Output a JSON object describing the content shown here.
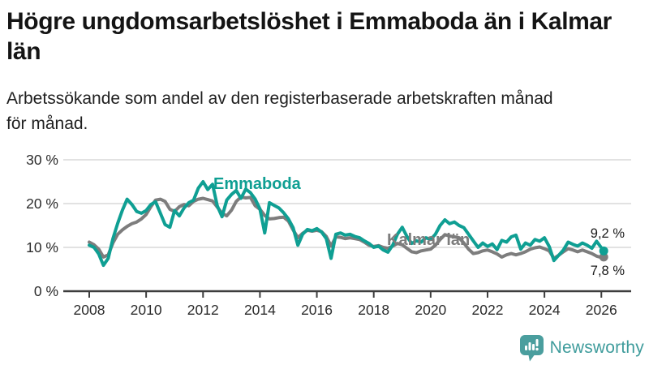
{
  "header": {
    "title": "Högre ungdomsarbetslöshet i Emmaboda än i Kalmar län",
    "title_lines": [
      "Högre ungdomsarbetslöshet i Emmaboda än i Kalmar",
      "län"
    ],
    "subtitle": "Arbetssökande som andel av den registerbaserade arbetskraften månad för månad.",
    "subtitle_lines": [
      "Arbetssökande som andel av den registerbaserade arbetskraften månad",
      "för månad."
    ]
  },
  "branding": {
    "name": "Newsworthy",
    "logo_icon": "newsworthy-speech-bubble-bar-chart-icon",
    "color": "#3f9c9c"
  },
  "chart_data": {
    "type": "line",
    "title": "Högre ungdomsarbetslöshet i Emmaboda än i Kalmar län",
    "xlabel": "",
    "ylabel": "",
    "grid": "horizontal",
    "legend": "inline-labels",
    "xlim": [
      2007.1,
      2027.1
    ],
    "ylim": [
      0,
      32
    ],
    "x_ticks": [
      2008,
      2010,
      2012,
      2014,
      2016,
      2018,
      2020,
      2022,
      2024,
      2026
    ],
    "y_ticks": [
      {
        "value": 0,
        "label": "0 %"
      },
      {
        "value": 10,
        "label": "10 %"
      },
      {
        "value": 20,
        "label": "20 %"
      },
      {
        "value": 30,
        "label": "30 %"
      }
    ],
    "style": {
      "grid_color": "#d9d9d9",
      "axis_color": "#3d3d3d",
      "axis_text_color": "#2b2b2b",
      "end_label_color": "#1a1a1a"
    },
    "x": [
      2008,
      2008.167,
      2008.333,
      2008.5,
      2008.667,
      2008.833,
      2009,
      2009.167,
      2009.333,
      2009.5,
      2009.667,
      2009.833,
      2010,
      2010.167,
      2010.333,
      2010.5,
      2010.667,
      2010.833,
      2011,
      2011.167,
      2011.333,
      2011.5,
      2011.667,
      2011.833,
      2012,
      2012.167,
      2012.333,
      2012.5,
      2012.667,
      2012.833,
      2013,
      2013.167,
      2013.333,
      2013.5,
      2013.667,
      2013.833,
      2014,
      2014.167,
      2014.333,
      2014.5,
      2014.667,
      2014.833,
      2015,
      2015.167,
      2015.333,
      2015.5,
      2015.667,
      2015.833,
      2016,
      2016.167,
      2016.333,
      2016.5,
      2016.667,
      2016.833,
      2017,
      2017.167,
      2017.333,
      2017.5,
      2017.667,
      2017.833,
      2018,
      2018.167,
      2018.333,
      2018.5,
      2018.667,
      2018.833,
      2019,
      2019.167,
      2019.333,
      2019.5,
      2019.667,
      2019.833,
      2020,
      2020.167,
      2020.333,
      2020.5,
      2020.667,
      2020.833,
      2021,
      2021.167,
      2021.333,
      2021.5,
      2021.667,
      2021.833,
      2022,
      2022.167,
      2022.333,
      2022.5,
      2022.667,
      2022.833,
      2023,
      2023.167,
      2023.333,
      2023.5,
      2023.667,
      2023.833,
      2024,
      2024.167,
      2024.333,
      2024.5,
      2024.667,
      2024.833,
      2025,
      2025.167,
      2025.333,
      2025.5,
      2025.667,
      2025.833,
      2026,
      2026.083
    ],
    "series": [
      {
        "id": "emmaboda",
        "name": "Emmaboda",
        "color": "#0f9f93",
        "end_value": 9.2,
        "end_label": "9,2 %",
        "values": [
          10.5,
          10.0,
          8.5,
          5.9,
          7.5,
          12.0,
          15.5,
          18.5,
          21.0,
          19.8,
          18.2,
          17.8,
          18.4,
          19.8,
          20.4,
          17.8,
          15.2,
          14.6,
          18.4,
          17.2,
          19.0,
          20.2,
          20.8,
          23.5,
          25.0,
          23.2,
          24.4,
          19.5,
          17.0,
          20.8,
          22.1,
          23.0,
          21.2,
          23.3,
          22.5,
          21.0,
          18.8,
          13.3,
          20.2,
          19.6,
          19.0,
          17.9,
          16.5,
          14.5,
          10.5,
          13.0,
          14.1,
          13.8,
          14.3,
          13.5,
          12.0,
          7.5,
          13.0,
          13.3,
          12.8,
          13.0,
          12.5,
          12.2,
          11.5,
          10.9,
          10.0,
          10.3,
          9.4,
          8.9,
          10.5,
          13.0,
          14.6,
          12.5,
          10.9,
          11.5,
          11.2,
          12.2,
          11.8,
          13.0,
          15.0,
          16.3,
          15.4,
          15.8,
          15.0,
          14.5,
          13.0,
          11.5,
          10.0,
          11.0,
          10.2,
          10.8,
          9.5,
          11.6,
          11.2,
          12.4,
          12.8,
          9.6,
          11.0,
          10.5,
          11.8,
          11.4,
          12.2,
          10.2,
          7.0,
          8.2,
          9.4,
          11.2,
          10.7,
          10.3,
          11.0,
          10.5,
          9.8,
          11.4,
          9.9,
          9.2
        ]
      },
      {
        "id": "kalmar-lan",
        "name": "Kalmar län",
        "color": "#7d7d7d",
        "end_value": 7.8,
        "end_label": "7,8 %",
        "values": [
          11.2,
          10.6,
          9.6,
          7.8,
          8.3,
          11.0,
          13.0,
          14.0,
          14.8,
          15.4,
          15.8,
          16.5,
          17.5,
          19.3,
          20.8,
          21.0,
          20.5,
          18.7,
          18.2,
          19.3,
          19.8,
          19.5,
          20.5,
          21.0,
          21.2,
          20.9,
          20.6,
          19.2,
          17.8,
          17.2,
          18.5,
          20.5,
          21.5,
          21.3,
          21.4,
          19.5,
          18.7,
          17.3,
          16.5,
          16.6,
          16.8,
          16.9,
          16.0,
          14.0,
          12.2,
          13.2,
          13.9,
          13.7,
          13.9,
          13.6,
          12.5,
          10.3,
          12.4,
          12.3,
          12.0,
          12.2,
          12.0,
          11.8,
          11.2,
          10.5,
          10.2,
          10.4,
          10.0,
          9.8,
          10.3,
          10.9,
          10.6,
          9.8,
          9.0,
          8.8,
          9.2,
          9.4,
          9.6,
          10.5,
          11.8,
          12.9,
          12.6,
          12.4,
          12.2,
          11.0,
          9.6,
          8.6,
          8.8,
          9.2,
          9.4,
          9.0,
          8.5,
          7.8,
          8.3,
          8.6,
          8.3,
          8.6,
          9.0,
          9.6,
          9.9,
          10.1,
          9.7,
          9.2,
          7.5,
          8.2,
          9.0,
          9.7,
          9.4,
          9.0,
          9.4,
          9.0,
          8.6,
          8.0,
          7.7,
          7.8
        ]
      }
    ]
  }
}
